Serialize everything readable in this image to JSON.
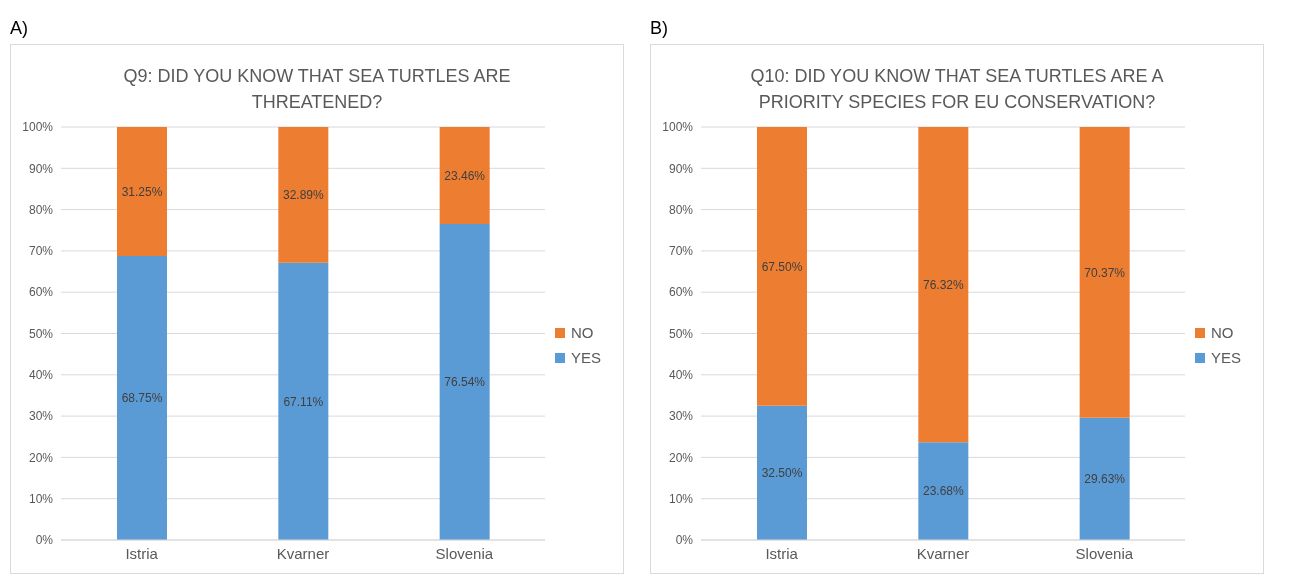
{
  "chart_data": [
    {
      "type": "bar",
      "title": "Q9: DID YOU KNOW THAT SEA TURTLES ARE THREATENED?",
      "annotations": [
        "A)"
      ],
      "categories": [
        "Istria",
        "Kvarner",
        "Slovenia"
      ],
      "stacked": true,
      "ylim": [
        0,
        100
      ],
      "yticks": [
        {
          "value": 0,
          "label": "0%"
        },
        {
          "value": 10,
          "label": "10%"
        },
        {
          "value": 20,
          "label": "20%"
        },
        {
          "value": 30,
          "label": "30%"
        },
        {
          "value": 40,
          "label": "40%"
        },
        {
          "value": 50,
          "label": "50%"
        },
        {
          "value": 60,
          "label": "60%"
        },
        {
          "value": 70,
          "label": "70%"
        },
        {
          "value": 80,
          "label": "80%"
        },
        {
          "value": 90,
          "label": "90%"
        },
        {
          "value": 100,
          "label": "100%"
        }
      ],
      "grid": "y",
      "legend": "right",
      "series": [
        {
          "name": "YES",
          "color": "#5b9bd5",
          "values": [
            68.75,
            67.11,
            76.54
          ],
          "value_labels": [
            "68.75%",
            "67.11%",
            "76.54%"
          ]
        },
        {
          "name": "NO",
          "color": "#ed7d31",
          "values": [
            31.25,
            32.89,
            23.46
          ],
          "value_labels": [
            "31.25%",
            "32.89%",
            "23.46%"
          ]
        }
      ]
    },
    {
      "type": "bar",
      "title": "Q10: DID YOU KNOW THAT SEA TURTLES ARE A PRIORITY SPECIES FOR EU CONSERVATION?",
      "annotations": [
        "B)"
      ],
      "categories": [
        "Istria",
        "Kvarner",
        "Slovenia"
      ],
      "stacked": true,
      "ylim": [
        0,
        100
      ],
      "yticks": [
        {
          "value": 0,
          "label": "0%"
        },
        {
          "value": 10,
          "label": "10%"
        },
        {
          "value": 20,
          "label": "20%"
        },
        {
          "value": 30,
          "label": "30%"
        },
        {
          "value": 40,
          "label": "40%"
        },
        {
          "value": 50,
          "label": "50%"
        },
        {
          "value": 60,
          "label": "60%"
        },
        {
          "value": 70,
          "label": "70%"
        },
        {
          "value": 80,
          "label": "80%"
        },
        {
          "value": 90,
          "label": "90%"
        },
        {
          "value": 100,
          "label": "100%"
        }
      ],
      "grid": "y",
      "legend": "right",
      "series": [
        {
          "name": "YES",
          "color": "#5b9bd5",
          "values": [
            32.5,
            23.68,
            29.63
          ],
          "value_labels": [
            "32.50%",
            "23.68%",
            "29.63%"
          ]
        },
        {
          "name": "NO",
          "color": "#ed7d31",
          "values": [
            67.5,
            76.32,
            70.37
          ],
          "value_labels": [
            "67.50%",
            "76.32%",
            "70.37%"
          ]
        }
      ]
    }
  ]
}
